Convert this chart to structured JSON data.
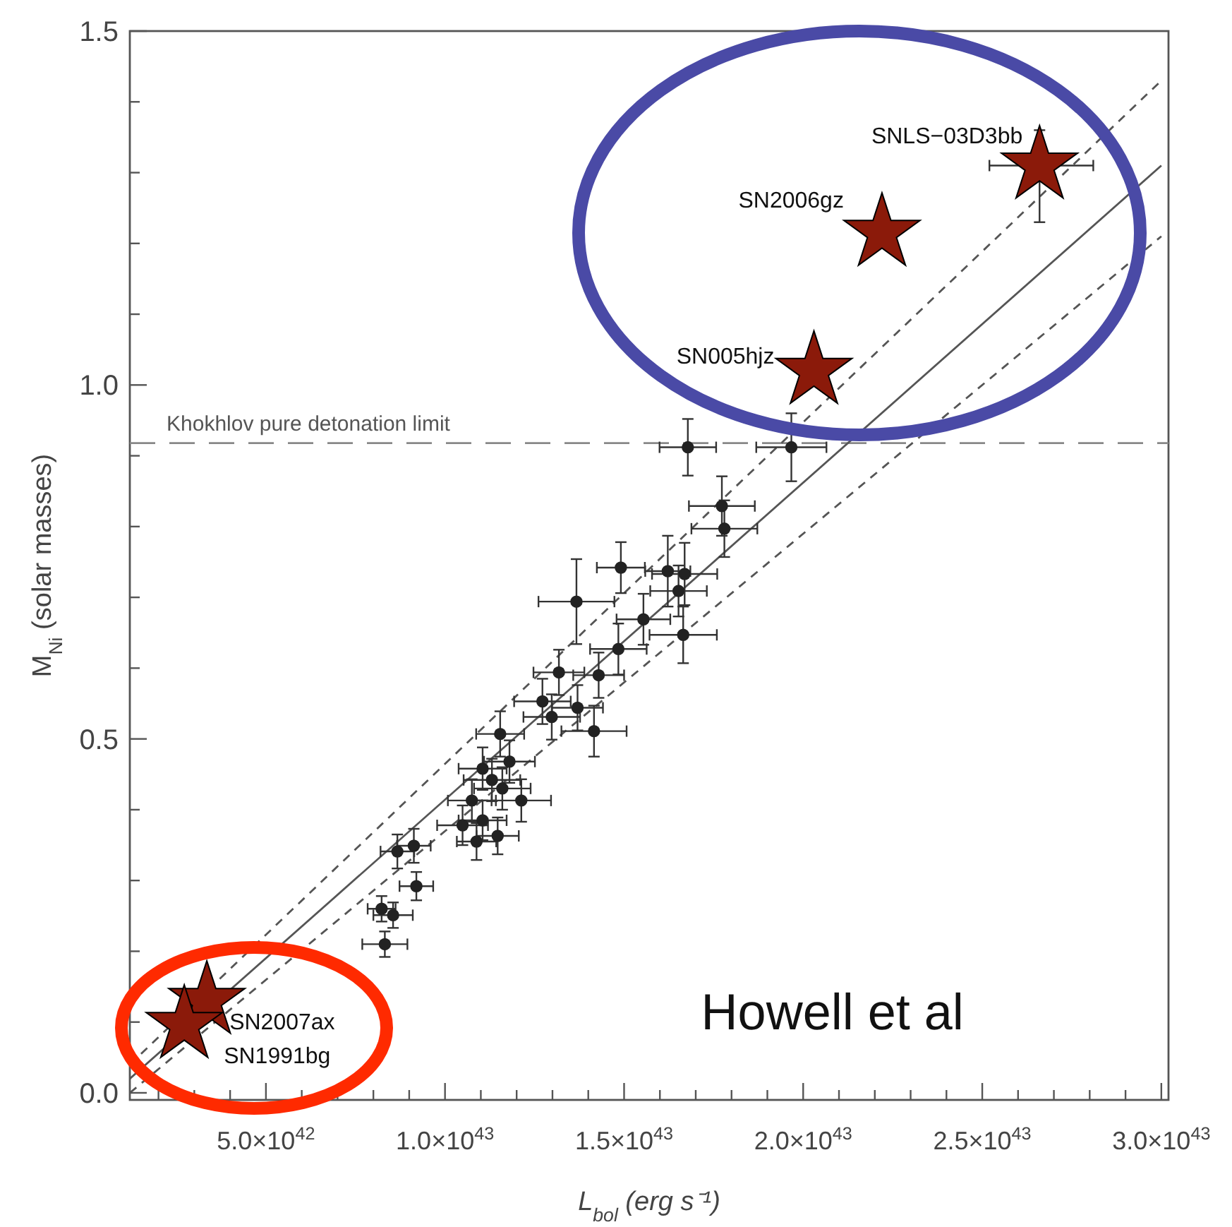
{
  "chart_data": {
    "type": "scatter",
    "xlabel": "L$_{bol}$ (erg s⁻¹)",
    "ylabel": "M$_{Ni}$ (solar masses)",
    "xlim": [
      1.2e+42,
      3.02e+43
    ],
    "ylim": [
      -0.01,
      1.5
    ],
    "xticks": [
      {
        "value": 2e+42,
        "label": null
      },
      {
        "value": 3e+42,
        "label": null
      },
      {
        "value": 4e+42,
        "label": null
      },
      {
        "value": 5e+42,
        "label": "5.0×10$^{42}$"
      },
      {
        "value": 6e+42,
        "label": null
      },
      {
        "value": 7e+42,
        "label": null
      },
      {
        "value": 8e+42,
        "label": null
      },
      {
        "value": 9e+42,
        "label": null
      },
      {
        "value": 1e+43,
        "label": "1.0×10$^{43}$"
      },
      {
        "value": 1.1e+43,
        "label": null
      },
      {
        "value": 1.2e+43,
        "label": null
      },
      {
        "value": 1.3e+43,
        "label": null
      },
      {
        "value": 1.4e+43,
        "label": null
      },
      {
        "value": 1.5e+43,
        "label": "1.5×10$^{43}$"
      },
      {
        "value": 1.6e+43,
        "label": null
      },
      {
        "value": 1.7e+43,
        "label": null
      },
      {
        "value": 1.8e+43,
        "label": null
      },
      {
        "value": 1.9e+43,
        "label": null
      },
      {
        "value": 2e+43,
        "label": "2.0×10$^{43}$"
      },
      {
        "value": 2.1e+43,
        "label": null
      },
      {
        "value": 2.2e+43,
        "label": null
      },
      {
        "value": 2.3e+43,
        "label": null
      },
      {
        "value": 2.4e+43,
        "label": null
      },
      {
        "value": 2.5e+43,
        "label": "2.5×10$^{43}$"
      },
      {
        "value": 2.6e+43,
        "label": null
      },
      {
        "value": 2.7e+43,
        "label": null
      },
      {
        "value": 2.8e+43,
        "label": null
      },
      {
        "value": 2.9e+43,
        "label": null
      },
      {
        "value": 3e+43,
        "label": "3.0×10$^{43}$"
      }
    ],
    "yticks": [
      {
        "value": 0,
        "label": "0.0"
      },
      {
        "value": 0.1,
        "label": null
      },
      {
        "value": 0.2,
        "label": null
      },
      {
        "value": 0.3,
        "label": null
      },
      {
        "value": 0.4,
        "label": null
      },
      0.5,
      {
        "value": 0.6,
        "label": null
      },
      {
        "value": 0.7,
        "label": null
      },
      {
        "value": 0.8,
        "label": null
      },
      {
        "value": 0.9,
        "label": null
      },
      {
        "value": 1,
        "label": "1.0"
      },
      {
        "value": 1.1,
        "label": null
      },
      {
        "value": 1.2,
        "label": null
      },
      {
        "value": 1.3,
        "label": null
      },
      {
        "value": 1.4,
        "label": null
      },
      1.5
    ],
    "grid": false,
    "ref_lines": [
      {
        "axis": "y",
        "value": 0.918,
        "label": "Khokhlov pure detonation limit",
        "color": "#888888",
        "line_style": "dashed"
      }
    ],
    "series": [
      {
        "type": "line",
        "color": "#555555",
        "line_style": "solid",
        "marker": "none",
        "x": [
          1.2e+42,
          3e+43
        ],
        "values": [
          0.02,
          1.31
        ]
      },
      {
        "type": "line",
        "color": "#555555",
        "line_style": "dashed",
        "marker": "none",
        "x": [
          1.2e+42,
          3e+43
        ],
        "values": [
          0.04,
          1.43
        ]
      },
      {
        "type": "line",
        "color": "#555555",
        "line_style": "dashed",
        "marker": "none",
        "x": [
          1.2e+42,
          3e+43
        ],
        "values": [
          0.0,
          1.21
        ]
      },
      {
        "color": "#222222",
        "marker": "circle",
        "x": [
          1.678e+43,
          1.967e+43,
          1.773e+43,
          1.78e+43,
          1.491e+43,
          1.622e+43,
          1.669e+43,
          1.652e+43,
          1.367e+43,
          1.554e+43,
          1.665e+43,
          1.484e+43,
          1.429e+43,
          1.318e+43,
          1.272e+43,
          1.298e+43,
          1.37e+43,
          1.416e+43,
          1.154e+43,
          1.18e+43,
          1.105e+43,
          1.131e+43,
          1.16e+43,
          1.213e+43,
          1.075e+43,
          1.105e+43,
          1.049e+43,
          1.147e+43,
          1.088e+43,
          8.67e+42,
          9.13e+42,
          9.2e+42,
          8.23e+42,
          8.55e+42,
          8.32e+42
        ],
        "values": [
          0.912,
          0.912,
          0.829,
          0.797,
          0.742,
          0.737,
          0.733,
          0.709,
          0.694,
          0.669,
          0.647,
          0.627,
          0.59,
          0.594,
          0.553,
          0.531,
          0.544,
          0.511,
          0.507,
          0.468,
          0.458,
          0.442,
          0.43,
          0.413,
          0.413,
          0.385,
          0.378,
          0.363,
          0.355,
          0.341,
          0.349,
          0.292,
          0.26,
          0.251,
          0.21
        ],
        "xerrors": [
          7.9e+41,
          9.8e+41,
          9.2e+41,
          9.2e+41,
          6.7e+41,
          6.3e+41,
          9.1e+41,
          7.9e+41,
          1.06e+42,
          7.5e+41,
          9.4e+41,
          7.9e+41,
          7.1e+41,
          7.1e+41,
          7.9e+41,
          7.9e+41,
          7.1e+41,
          9.1e+41,
          6.7e+41,
          7.1e+41,
          6.7e+41,
          7.9e+41,
          7.9e+41,
          8.3e+41,
          6.7e+41,
          6.7e+41,
          7.1e+41,
          5.9e+41,
          5.5e+41,
          4.7e+41,
          4.7e+41,
          4.7e+41,
          3.9e+41,
          5.5e+41,
          6.3e+41
        ],
        "errors": [
          0.04,
          0.048,
          0.042,
          0.04,
          0.036,
          0.05,
          0.044,
          0.036,
          0.06,
          0.036,
          0.04,
          0.036,
          0.032,
          0.032,
          0.032,
          0.032,
          0.032,
          0.036,
          0.032,
          0.03,
          0.03,
          0.03,
          0.03,
          0.03,
          0.03,
          0.028,
          0.028,
          0.026,
          0.026,
          0.024,
          0.024,
          0.02,
          0.018,
          0.018,
          0.018
        ]
      },
      {
        "color": "#8b1a0a",
        "marker": "star",
        "x": [
          2.66e+43,
          2.22e+43,
          2.03e+43,
          3.35e+42,
          2.72e+42
        ],
        "values": [
          1.31,
          1.215,
          1.02,
          0.13,
          0.096
        ],
        "xerrors": [
          [
            2.52e+43,
            2.81e+43
          ],
          null,
          null,
          null,
          null
        ],
        "errors": [
          [
            1.23,
            1.36
          ],
          null,
          null,
          null,
          null
        ]
      }
    ],
    "annotations": [
      {
        "text": "SNLS−03D3bb",
        "x": 2.66e+43,
        "y": 1.31
      },
      {
        "text": "SN2006gz",
        "x": 2.22e+43,
        "y": 1.215
      },
      {
        "text": "SN005hjz",
        "x": 2.03e+43,
        "y": 1.02
      },
      {
        "text": "SN2007ax",
        "x": 3.35e+42,
        "y": 0.13
      },
      {
        "text": "SN1991bg",
        "x": 2.72e+42,
        "y": 0.096
      },
      "Howell et al"
    ]
  }
}
